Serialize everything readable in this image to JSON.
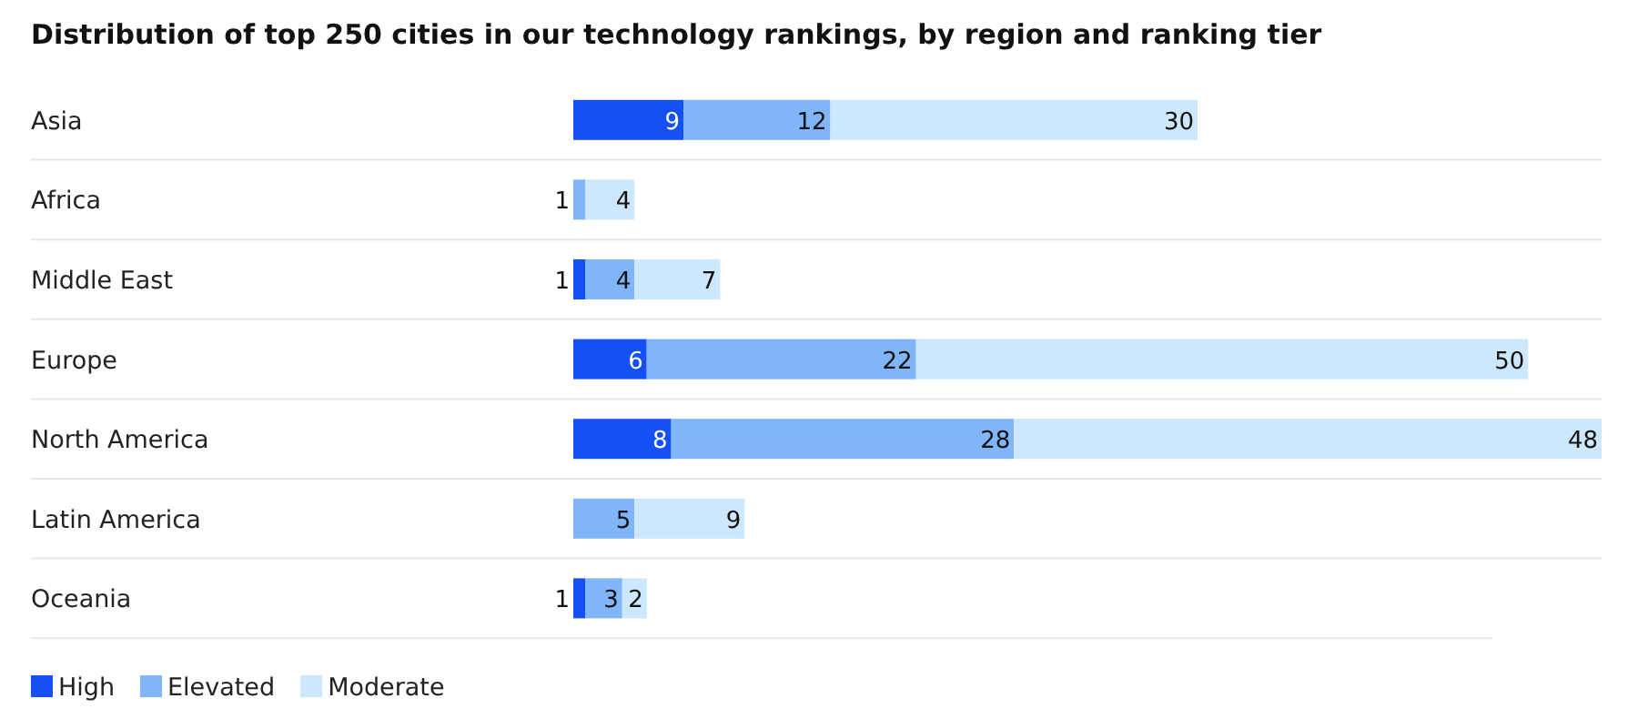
{
  "chart_data": {
    "type": "bar",
    "orientation": "horizontal",
    "stacked": true,
    "data_labels": true,
    "legend": "bottom left",
    "title": "Distribution of top 250 cities in our technology rankings, by region and ranking tier",
    "categories": [
      "Asia",
      "Africa",
      "Middle East",
      "Europe",
      "North America",
      "Latin America",
      "Oceania"
    ],
    "series": [
      {
        "name": "High",
        "color": "#1450f5",
        "values": [
          9,
          null,
          1,
          6,
          8,
          null,
          1
        ]
      },
      {
        "name": "Elevated",
        "color": "#80b5f8",
        "values": [
          12,
          1,
          4,
          22,
          28,
          5,
          3
        ]
      },
      {
        "name": "Moderate",
        "color": "#cde7fc",
        "values": [
          30,
          4,
          7,
          50,
          48,
          9,
          2
        ]
      }
    ]
  }
}
